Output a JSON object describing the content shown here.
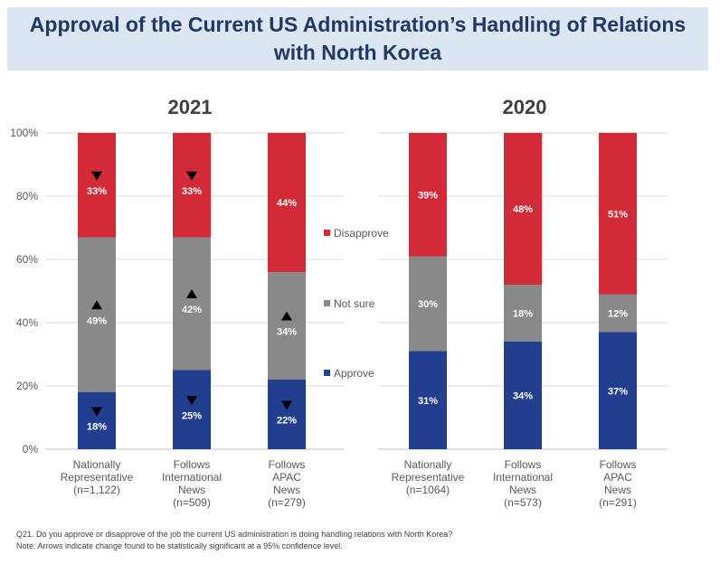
{
  "title": "Approval of the Current US Administration’s Handling of Relations with North Korea",
  "chart_data": [
    {
      "type": "bar",
      "stacked": true,
      "title": "2021",
      "categories": [
        [
          "Nationally",
          "Representative",
          "(n=1,122)"
        ],
        [
          "Follows",
          "International",
          "News",
          "(n=509)"
        ],
        [
          "Follows",
          "APAC",
          "News",
          "(n=279)"
        ]
      ],
      "series": [
        {
          "name": "Approve",
          "color": "#223f8f",
          "values": [
            18,
            25,
            22
          ],
          "labels": [
            "18%",
            "25%",
            "22%"
          ],
          "arrows": [
            "down",
            "down",
            "down"
          ]
        },
        {
          "name": "Not sure",
          "color": "#898989",
          "values": [
            49,
            42,
            34
          ],
          "labels": [
            "49%",
            "42%",
            "34%"
          ],
          "arrows": [
            "up",
            "up",
            "up"
          ]
        },
        {
          "name": "Disapprove",
          "color": "#d22a37",
          "values": [
            33,
            33,
            44
          ],
          "labels": [
            "33%",
            "33%",
            "44%"
          ],
          "arrows": [
            "down",
            "down",
            null
          ]
        }
      ],
      "ylim": [
        0,
        100
      ],
      "yticks": [
        "0%",
        "20%",
        "40%",
        "60%",
        "80%",
        "100%"
      ],
      "grid": true
    },
    {
      "type": "bar",
      "stacked": true,
      "title": "2020",
      "categories": [
        [
          "Nationally",
          "Representative",
          "(n=1064)"
        ],
        [
          "Follows",
          "International",
          "News",
          "(n=573)"
        ],
        [
          "Follows",
          "APAC",
          "News",
          "(n=291)"
        ]
      ],
      "series": [
        {
          "name": "Approve",
          "color": "#223f8f",
          "values": [
            31,
            34,
            37
          ],
          "labels": [
            "31%",
            "34%",
            "37%"
          ]
        },
        {
          "name": "Not sure",
          "color": "#898989",
          "values": [
            30,
            18,
            12
          ],
          "labels": [
            "30%",
            "18%",
            "12%"
          ]
        },
        {
          "name": "Disapprove",
          "color": "#d22a37",
          "values": [
            39,
            48,
            51
          ],
          "labels": [
            "39%",
            "48%",
            "51%"
          ]
        }
      ],
      "ylim": [
        0,
        100
      ],
      "grid": true
    }
  ],
  "legend": {
    "placement": "between-charts",
    "items": [
      {
        "name": "Disapprove",
        "color": "#d22a37"
      },
      {
        "name": "Not sure",
        "color": "#898989"
      },
      {
        "name": "Approve",
        "color": "#223f8f"
      }
    ]
  },
  "footnotes": {
    "question": "Q21. Do you approve or disapprove of the job the current US administration is doing handling relations with North Korea?",
    "note": "Note: Arrows indicate change found to be statistically significant at a 95% confidence level."
  }
}
